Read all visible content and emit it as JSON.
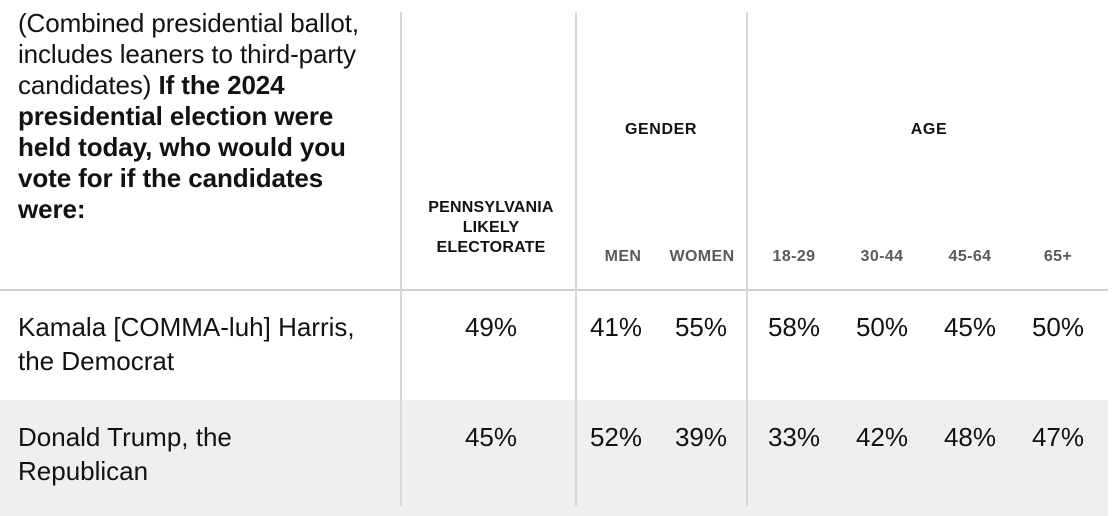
{
  "question": {
    "prefix": "(Combined presidential ballot, includes leaners to third-party candidates)",
    "bold": "If the 2024 presidential election were held today, who would you vote for if the candidates were:"
  },
  "columns": {
    "electorate": {
      "line1": "PENNSYLVANIA",
      "line2": "LIKELY",
      "line3": "ELECTORATE"
    },
    "gender": {
      "group": "GENDER",
      "men": "MEN",
      "women": "WOMEN"
    },
    "age": {
      "group": "AGE",
      "a18_29": "18-29",
      "a30_44": "30-44",
      "a45_64": "45-64",
      "a65": "65+"
    }
  },
  "rows": [
    {
      "label_line1": "Kamala [COMMA-luh] Harris,",
      "label_line2": "the Democrat",
      "electorate": "49%",
      "men": "41%",
      "women": "55%",
      "a18_29": "58%",
      "a30_44": "50%",
      "a45_64": "45%",
      "a65": "50%"
    },
    {
      "label_line1": "Donald Trump, the",
      "label_line2": "Republican",
      "electorate": "45%",
      "men": "52%",
      "women": "39%",
      "a18_29": "33%",
      "a30_44": "42%",
      "a45_64": "48%",
      "a65": "47%"
    }
  ],
  "colors": {
    "text": "#121212",
    "subhead": "#5a5a5a",
    "shade": "#efefef",
    "rule": "#d7d7d7"
  }
}
